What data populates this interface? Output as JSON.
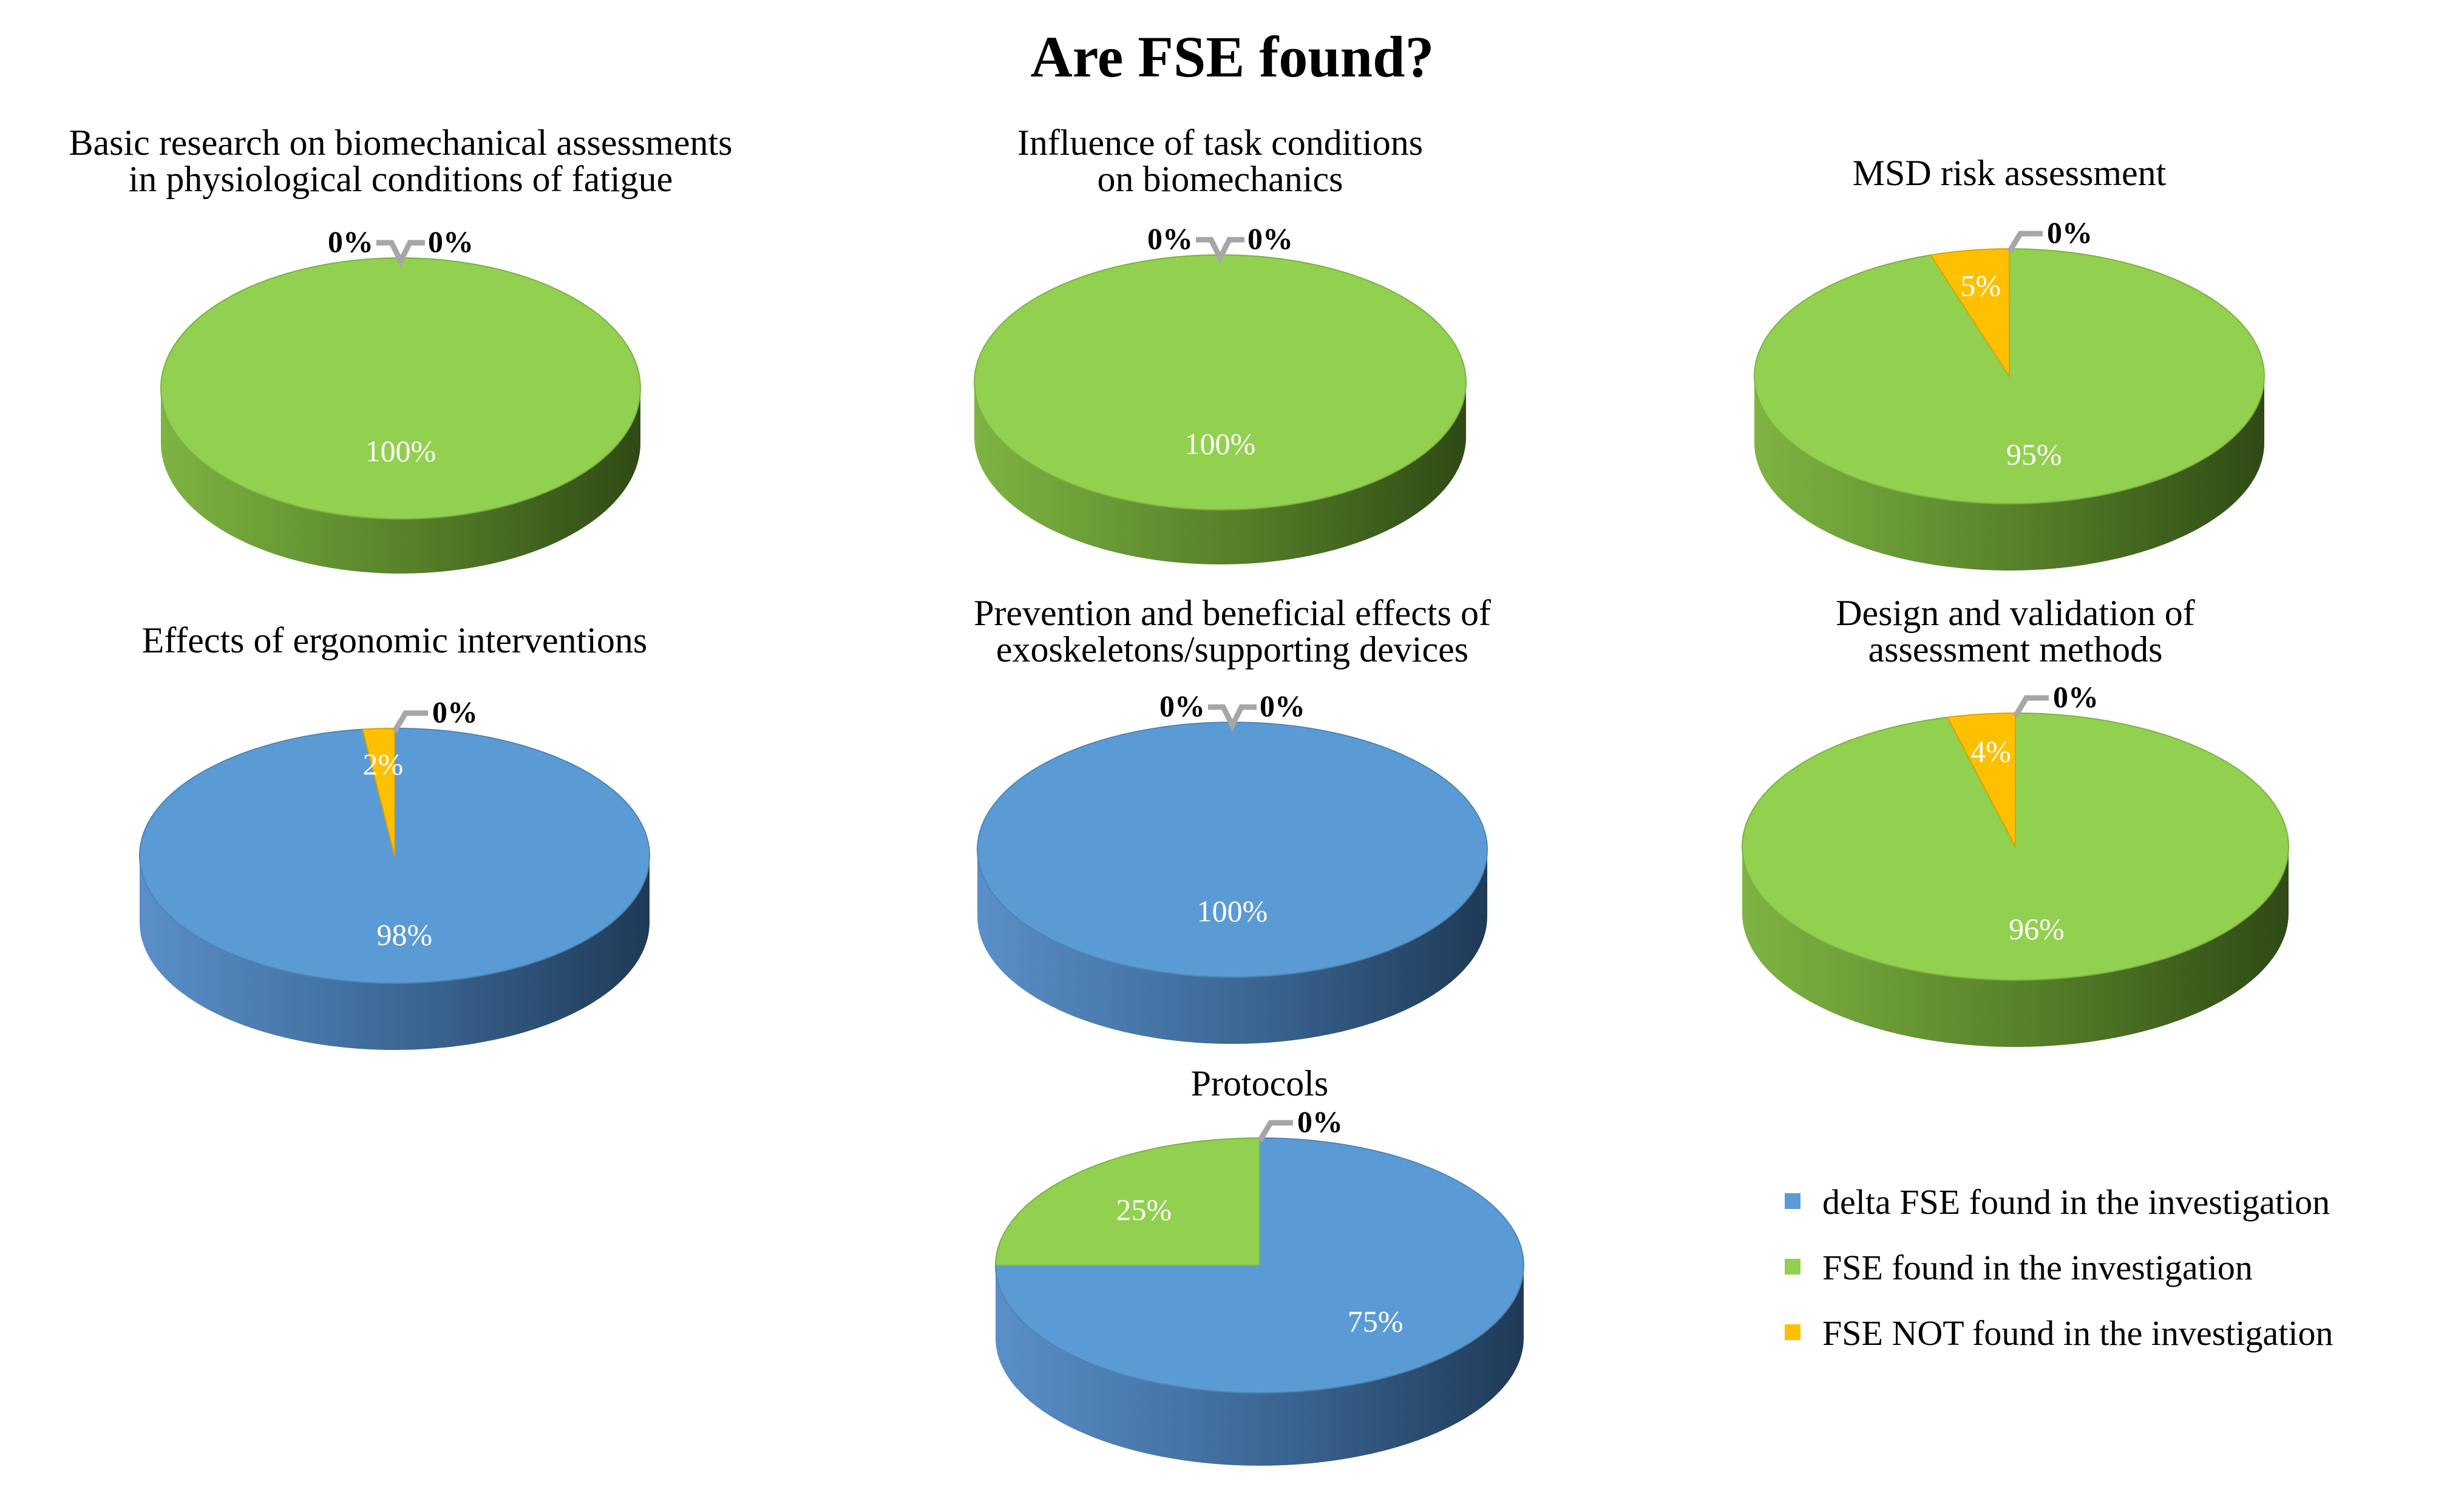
{
  "title": "Are FSE found?",
  "colors": {
    "delta": "#5B9BD5",
    "found": "#92D050",
    "not_found": "#FFC000"
  },
  "legend": {
    "position": "bottom-right",
    "items": [
      {
        "key": "delta",
        "label": " delta FSE found in the investigation"
      },
      {
        "key": "found",
        "label": "FSE found in the investigation"
      },
      {
        "key": "not_found",
        "label": "FSE NOT found in the investigation"
      }
    ]
  },
  "chart_data": [
    {
      "type": "pie",
      "title_lines": [
        "Basic research on biomechanical assessments",
        "in physiological conditions of fatigue"
      ],
      "slices": [
        {
          "category": "delta",
          "value": 0,
          "label": "0%"
        },
        {
          "category": "found",
          "value": 100,
          "label": "100%"
        },
        {
          "category": "not_found",
          "value": 0,
          "label": "0%"
        }
      ]
    },
    {
      "type": "pie",
      "title_lines": [
        "Influence of task conditions",
        "on biomechanics"
      ],
      "slices": [
        {
          "category": "delta",
          "value": 0,
          "label": "0%"
        },
        {
          "category": "found",
          "value": 100,
          "label": "100%"
        },
        {
          "category": "not_found",
          "value": 0,
          "label": "0%"
        }
      ]
    },
    {
      "type": "pie",
      "title_lines": [
        "MSD risk assessment"
      ],
      "slices": [
        {
          "category": "delta",
          "value": 0,
          "label": "0%"
        },
        {
          "category": "found",
          "value": 95,
          "label": "95%"
        },
        {
          "category": "not_found",
          "value": 5,
          "label": "5%"
        }
      ]
    },
    {
      "type": "pie",
      "title_lines": [
        "Effects of ergonomic interventions"
      ],
      "slices": [
        {
          "category": "delta",
          "value": 98,
          "label": "98%"
        },
        {
          "category": "found",
          "value": 0,
          "label": "0%"
        },
        {
          "category": "not_found",
          "value": 2,
          "label": "2%"
        }
      ]
    },
    {
      "type": "pie",
      "title_lines": [
        "Prevention and beneficial effects of",
        "exoskeletons/supporting devices"
      ],
      "slices": [
        {
          "category": "delta",
          "value": 100,
          "label": "100%"
        },
        {
          "category": "found",
          "value": 0,
          "label": "0%"
        },
        {
          "category": "not_found",
          "value": 0,
          "label": "0%"
        }
      ]
    },
    {
      "type": "pie",
      "title_lines": [
        "Design and validation of",
        "assessment methods"
      ],
      "slices": [
        {
          "category": "delta",
          "value": 0,
          "label": "0%"
        },
        {
          "category": "found",
          "value": 96,
          "label": "96%"
        },
        {
          "category": "not_found",
          "value": 4,
          "label": "4%"
        }
      ]
    },
    {
      "type": "pie",
      "title_lines": [
        "Protocols"
      ],
      "slices": [
        {
          "category": "delta",
          "value": 75,
          "label": "75%"
        },
        {
          "category": "found",
          "value": 25,
          "label": "25%"
        },
        {
          "category": "not_found",
          "value": 0,
          "label": "0%"
        }
      ]
    }
  ]
}
